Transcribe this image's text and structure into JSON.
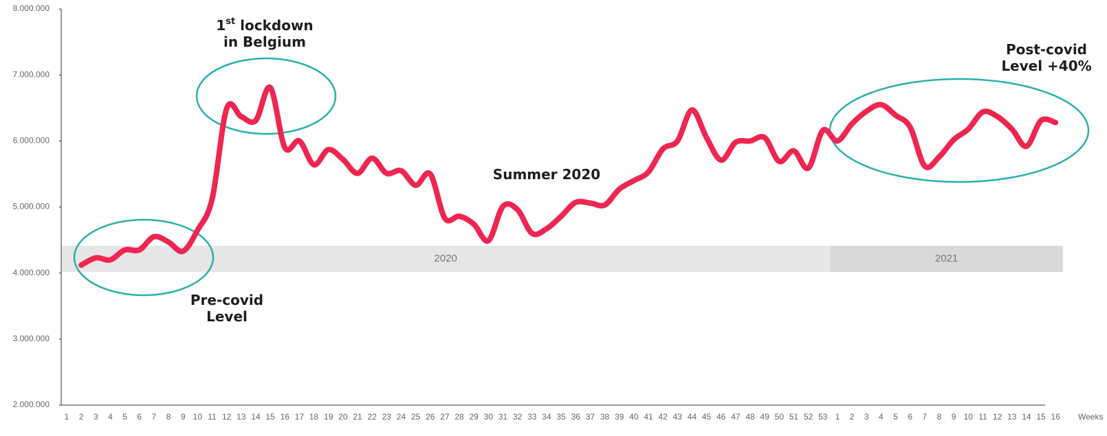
{
  "chart_data": {
    "type": "line",
    "x_label": "Weeks",
    "categories": [
      "1",
      "2",
      "3",
      "4",
      "5",
      "6",
      "7",
      "8",
      "9",
      "10",
      "11",
      "12",
      "13",
      "14",
      "15",
      "16",
      "17",
      "18",
      "19",
      "20",
      "21",
      "22",
      "23",
      "24",
      "25",
      "26",
      "27",
      "28",
      "29",
      "30",
      "31",
      "32",
      "33",
      "34",
      "35",
      "36",
      "37",
      "38",
      "39",
      "40",
      "41",
      "42",
      "43",
      "44",
      "45",
      "46",
      "47",
      "48",
      "49",
      "50",
      "51",
      "52",
      "53",
      "1",
      "2",
      "3",
      "4",
      "5",
      "6",
      "7",
      "8",
      "9",
      "10",
      "11",
      "12",
      "13",
      "14",
      "15",
      "16"
    ],
    "series": [
      {
        "color": "#ee2650",
        "values": [
          null,
          4120000,
          4230000,
          4200000,
          4350000,
          4350000,
          4550000,
          4470000,
          4330000,
          4650000,
          5120000,
          6490000,
          6370000,
          6310000,
          6810000,
          5900000,
          6000000,
          5640000,
          5870000,
          5720000,
          5510000,
          5740000,
          5510000,
          5550000,
          5330000,
          5500000,
          4830000,
          4860000,
          4740000,
          4490000,
          5010000,
          4960000,
          4600000,
          4670000,
          4860000,
          5070000,
          5060000,
          5030000,
          5270000,
          5400000,
          5530000,
          5880000,
          6000000,
          6470000,
          6050000,
          5710000,
          5980000,
          6000000,
          6050000,
          5690000,
          5850000,
          5590000,
          6160000,
          6000000,
          6260000,
          6450000,
          6550000,
          6390000,
          6210000,
          5620000,
          5760000,
          6020000,
          6180000,
          6440000,
          6370000,
          6180000,
          5920000,
          6310000,
          6280000
        ]
      }
    ],
    "ylim": [
      2000000,
      8000000
    ],
    "yticks": [
      {
        "value": 2000000,
        "label": "2.000.000"
      },
      {
        "value": 3000000,
        "label": "3.000.000"
      },
      {
        "value": 4000000,
        "label": "4.000.000"
      },
      {
        "value": 5000000,
        "label": "5.000.000"
      },
      {
        "value": 6000000,
        "label": "6.000.000"
      },
      {
        "value": 7000000,
        "label": "7.000.000"
      },
      {
        "value": 8000000,
        "label": "8.000.000"
      }
    ],
    "periods": [
      {
        "label": "2020",
        "start": 0,
        "end": 52,
        "color": "#e6e6e6"
      },
      {
        "label": "2021",
        "start": 53,
        "end": 68,
        "color": "#d9d9d9"
      }
    ],
    "annotations": [
      {
        "lines": [
          [
            "1",
            {
              "sup": "st"
            },
            " lockdown"
          ],
          [
            "in Belgium"
          ]
        ]
      },
      {
        "lines": [
          [
            "Pre-covid"
          ],
          [
            "Level"
          ]
        ]
      },
      {
        "lines": [
          [
            "Summer 2020"
          ]
        ]
      },
      {
        "lines": [
          [
            "Post-covid"
          ],
          [
            "Level +40%"
          ]
        ]
      }
    ]
  }
}
